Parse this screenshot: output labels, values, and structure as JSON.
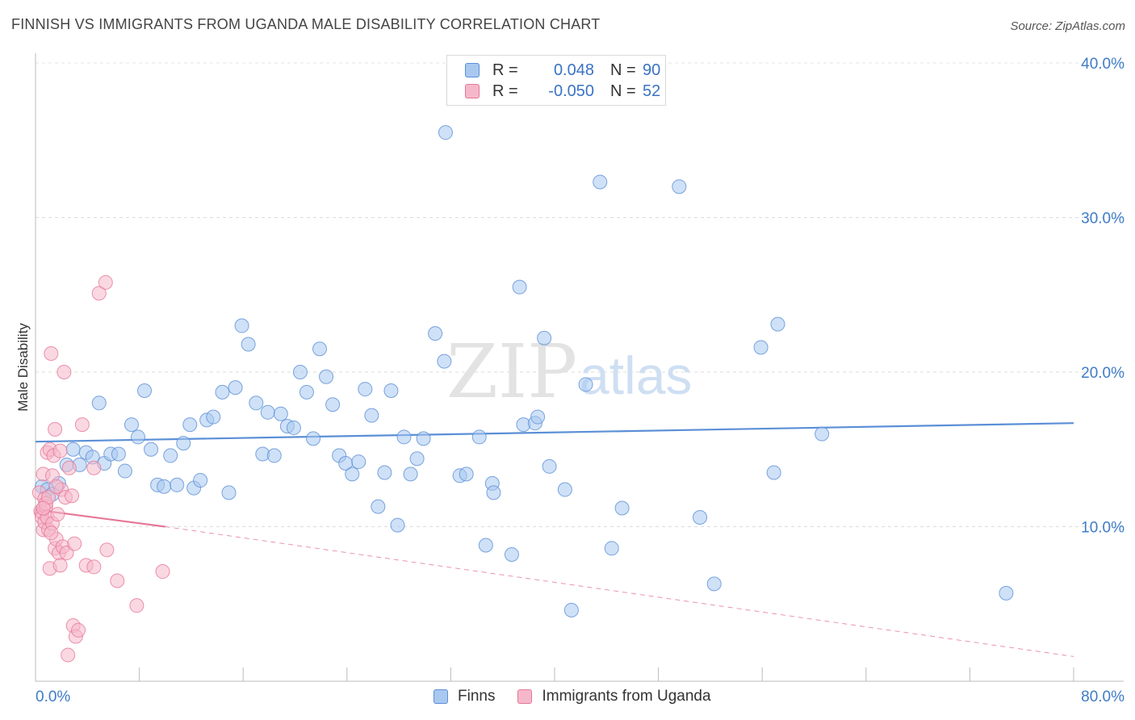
{
  "title": "FINNISH VS IMMIGRANTS FROM UGANDA MALE DISABILITY CORRELATION CHART",
  "source": "Source: ZipAtlas.com",
  "watermark": {
    "zip": "ZIP",
    "atlas": "atlas"
  },
  "legend": {
    "r_label": "R =",
    "n_label": "N =",
    "rows": [
      {
        "name": "Finns",
        "r": "0.048",
        "n": "90",
        "fill": "#a8c8f0",
        "stroke": "#5b8fd6"
      },
      {
        "name": "Immigrants from Uganda",
        "r": "-0.050",
        "n": "52",
        "fill": "#f5b8cb",
        "stroke": "#e57898"
      }
    ]
  },
  "chart_data": {
    "type": "scatter",
    "title": "FINNISH VS IMMIGRANTS FROM UGANDA MALE DISABILITY CORRELATION CHART",
    "xlabel": "",
    "ylabel": "Male Disability",
    "xlim": [
      0,
      80
    ],
    "ylim": [
      0,
      40
    ],
    "x_tick_labels": [
      "0.0%",
      "80.0%"
    ],
    "y_ticks": [
      10,
      20,
      30,
      40
    ],
    "y_tick_labels": [
      "10.0%",
      "20.0%",
      "30.0%",
      "40.0%"
    ],
    "grid": true,
    "series": [
      {
        "name": "Finns",
        "color": "#5b8fd6",
        "trend": {
          "x": [
            0,
            80
          ],
          "y": [
            15.5,
            16.7
          ],
          "style": "solid"
        },
        "points": [
          [
            0.5,
            12.6
          ],
          [
            0.9,
            12.4
          ],
          [
            1.3,
            12.1
          ],
          [
            1.8,
            12.8
          ],
          [
            2.4,
            14.0
          ],
          [
            2.9,
            15.0
          ],
          [
            3.4,
            14.0
          ],
          [
            3.9,
            14.8
          ],
          [
            4.4,
            14.5
          ],
          [
            4.9,
            18.0
          ],
          [
            5.3,
            14.1
          ],
          [
            5.8,
            14.7
          ],
          [
            6.4,
            14.7
          ],
          [
            6.9,
            13.6
          ],
          [
            7.4,
            16.6
          ],
          [
            7.9,
            15.8
          ],
          [
            8.4,
            18.8
          ],
          [
            8.9,
            15.0
          ],
          [
            9.4,
            12.7
          ],
          [
            9.9,
            12.6
          ],
          [
            10.4,
            14.6
          ],
          [
            10.9,
            12.7
          ],
          [
            11.4,
            15.4
          ],
          [
            11.9,
            16.6
          ],
          [
            12.2,
            12.5
          ],
          [
            12.7,
            13.0
          ],
          [
            13.2,
            16.9
          ],
          [
            13.7,
            17.1
          ],
          [
            14.4,
            18.7
          ],
          [
            14.9,
            12.2
          ],
          [
            15.4,
            19.0
          ],
          [
            15.9,
            23.0
          ],
          [
            16.4,
            21.8
          ],
          [
            17.0,
            18.0
          ],
          [
            17.5,
            14.7
          ],
          [
            17.9,
            17.4
          ],
          [
            18.4,
            14.6
          ],
          [
            18.9,
            17.3
          ],
          [
            19.4,
            16.5
          ],
          [
            19.9,
            16.4
          ],
          [
            20.4,
            20.0
          ],
          [
            20.9,
            18.7
          ],
          [
            21.4,
            15.7
          ],
          [
            21.9,
            21.5
          ],
          [
            22.4,
            19.7
          ],
          [
            22.9,
            17.9
          ],
          [
            23.4,
            14.6
          ],
          [
            23.9,
            14.1
          ],
          [
            24.4,
            13.4
          ],
          [
            24.9,
            14.2
          ],
          [
            25.4,
            18.9
          ],
          [
            25.9,
            17.2
          ],
          [
            26.4,
            11.3
          ],
          [
            26.9,
            13.5
          ],
          [
            27.4,
            18.8
          ],
          [
            27.9,
            10.1
          ],
          [
            28.4,
            15.8
          ],
          [
            28.9,
            13.4
          ],
          [
            29.4,
            14.4
          ],
          [
            29.9,
            15.7
          ],
          [
            30.8,
            22.5
          ],
          [
            31.5,
            20.7
          ],
          [
            31.6,
            35.5
          ],
          [
            32.7,
            13.3
          ],
          [
            33.2,
            13.4
          ],
          [
            34.2,
            15.8
          ],
          [
            34.7,
            8.8
          ],
          [
            35.2,
            12.8
          ],
          [
            35.3,
            12.2
          ],
          [
            36.7,
            8.2
          ],
          [
            37.3,
            25.5
          ],
          [
            37.6,
            16.6
          ],
          [
            38.5,
            16.7
          ],
          [
            38.7,
            17.1
          ],
          [
            39.2,
            22.2
          ],
          [
            39.6,
            13.9
          ],
          [
            40.8,
            12.4
          ],
          [
            41.3,
            4.6
          ],
          [
            42.4,
            19.2
          ],
          [
            43.5,
            32.3
          ],
          [
            44.4,
            8.6
          ],
          [
            45.2,
            11.2
          ],
          [
            49.6,
            32.0
          ],
          [
            51.2,
            10.6
          ],
          [
            52.3,
            6.3
          ],
          [
            55.9,
            21.6
          ],
          [
            56.9,
            13.5
          ],
          [
            57.2,
            23.1
          ],
          [
            60.6,
            16.0
          ],
          [
            74.8,
            5.7
          ]
        ]
      },
      {
        "name": "Immigrants from Uganda",
        "color": "#e57898",
        "trend": {
          "x": [
            0,
            10
          ],
          "y": [
            11.1,
            10.0
          ],
          "style": "solid",
          "extended_x": [
            10,
            80
          ],
          "extended_y": [
            10.0,
            1.6
          ],
          "extended_style": "dashed"
        },
        "points": [
          [
            0.3,
            12.2
          ],
          [
            0.4,
            11.0
          ],
          [
            0.5,
            10.9
          ],
          [
            0.5,
            10.6
          ],
          [
            0.6,
            9.8
          ],
          [
            0.6,
            13.4
          ],
          [
            0.7,
            11.8
          ],
          [
            0.7,
            10.3
          ],
          [
            0.8,
            11.3
          ],
          [
            0.8,
            11.5
          ],
          [
            0.9,
            10.6
          ],
          [
            0.9,
            14.8
          ],
          [
            1.0,
            11.9
          ],
          [
            1.0,
            9.8
          ],
          [
            1.1,
            15.0
          ],
          [
            1.1,
            7.3
          ],
          [
            1.2,
            21.2
          ],
          [
            1.3,
            13.3
          ],
          [
            1.3,
            10.2
          ],
          [
            1.4,
            14.6
          ],
          [
            1.5,
            8.6
          ],
          [
            1.5,
            16.3
          ],
          [
            1.6,
            9.2
          ],
          [
            1.7,
            10.8
          ],
          [
            1.8,
            8.3
          ],
          [
            1.9,
            7.5
          ],
          [
            1.9,
            14.9
          ],
          [
            2.0,
            12.4
          ],
          [
            2.1,
            8.7
          ],
          [
            2.2,
            20.0
          ],
          [
            2.3,
            11.9
          ],
          [
            2.4,
            8.3
          ],
          [
            2.5,
            1.7
          ],
          [
            2.6,
            13.8
          ],
          [
            2.9,
            3.6
          ],
          [
            3.0,
            8.9
          ],
          [
            3.1,
            2.9
          ],
          [
            3.3,
            3.3
          ],
          [
            3.6,
            16.6
          ],
          [
            3.9,
            7.5
          ],
          [
            4.5,
            7.4
          ],
          [
            4.5,
            13.8
          ],
          [
            4.9,
            25.1
          ],
          [
            5.4,
            25.8
          ],
          [
            5.5,
            8.5
          ],
          [
            6.3,
            6.5
          ],
          [
            7.8,
            4.9
          ],
          [
            9.8,
            7.1
          ],
          [
            1.2,
            9.6
          ],
          [
            0.6,
            11.2
          ],
          [
            2.8,
            12.0
          ],
          [
            1.6,
            12.6
          ]
        ]
      }
    ]
  }
}
